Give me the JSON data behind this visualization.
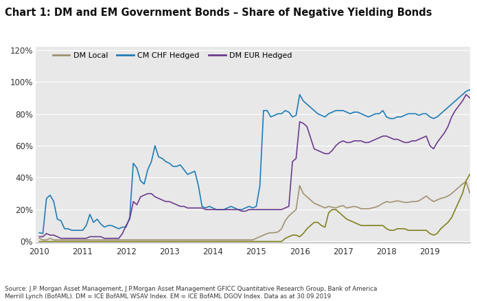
{
  "title": "Chart 1: DM and EM Government Bonds – Share of Negative Yielding Bonds",
  "source_text": "Source: J.P. Morgan Asset Management, J.P.Morgan Asset Management GFICC Quantitative Research Group, Bank of America\nMerrill Lynch (BofAML). DM = ICE BofAML WSAV Index. EM = ICE BofAML DGOV Index. Data as at 30.09.2019",
  "fig_background": "#ffffff",
  "axes_background": "#e8e8e8",
  "legend": [
    "DM Local",
    "CM CHF Hedged",
    "DM EUR Hedged"
  ],
  "legend_colors": [
    "#a09070",
    "#1e7bb5",
    "#6b3a8c"
  ],
  "em_color": "#808020",
  "ylim": [
    -0.005,
    1.22
  ],
  "yticks": [
    0.0,
    0.2,
    0.4,
    0.6,
    0.8,
    1.0,
    1.2
  ],
  "xticks": [
    2010,
    2011,
    2012,
    2013,
    2014,
    2015,
    2016,
    2017,
    2018,
    2019
  ],
  "dm_local": [
    0.02,
    0.01,
    0.01,
    0.02,
    0.01,
    0.01,
    0.01,
    0.01,
    0.01,
    0.01,
    0.01,
    0.01,
    0.01,
    0.01,
    0.01,
    0.01,
    0.01,
    0.01,
    0.01,
    0.01,
    0.01,
    0.01,
    0.01,
    0.01,
    0.01,
    0.01,
    0.01,
    0.01,
    0.01,
    0.01,
    0.01,
    0.01,
    0.01,
    0.01,
    0.01,
    0.01,
    0.01,
    0.01,
    0.01,
    0.01,
    0.01,
    0.01,
    0.01,
    0.01,
    0.01,
    0.01,
    0.01,
    0.01,
    0.01,
    0.01,
    0.01,
    0.01,
    0.01,
    0.01,
    0.01,
    0.01,
    0.01,
    0.01,
    0.01,
    0.01,
    0.02,
    0.03,
    0.04,
    0.05,
    0.055,
    0.055,
    0.06,
    0.08,
    0.13,
    0.16,
    0.18,
    0.2,
    0.35,
    0.3,
    0.28,
    0.26,
    0.24,
    0.23,
    0.22,
    0.21,
    0.22,
    0.215,
    0.21,
    0.22,
    0.225,
    0.21,
    0.215,
    0.22,
    0.215,
    0.205,
    0.205,
    0.205,
    0.21,
    0.215,
    0.225,
    0.24,
    0.25,
    0.245,
    0.25,
    0.255,
    0.25,
    0.245,
    0.245,
    0.25,
    0.25,
    0.255,
    0.27,
    0.285,
    0.265,
    0.25,
    0.26,
    0.27,
    0.275,
    0.285,
    0.3,
    0.32,
    0.34,
    0.36,
    0.375,
    0.305
  ],
  "cm_chf": [
    0.055,
    0.05,
    0.27,
    0.29,
    0.25,
    0.14,
    0.13,
    0.08,
    0.08,
    0.07,
    0.07,
    0.07,
    0.07,
    0.1,
    0.17,
    0.12,
    0.14,
    0.11,
    0.09,
    0.1,
    0.1,
    0.09,
    0.08,
    0.09,
    0.09,
    0.15,
    0.49,
    0.46,
    0.38,
    0.36,
    0.45,
    0.5,
    0.6,
    0.53,
    0.52,
    0.5,
    0.49,
    0.47,
    0.47,
    0.48,
    0.45,
    0.42,
    0.43,
    0.44,
    0.35,
    0.22,
    0.21,
    0.22,
    0.21,
    0.2,
    0.2,
    0.2,
    0.21,
    0.22,
    0.21,
    0.2,
    0.2,
    0.21,
    0.22,
    0.21,
    0.22,
    0.35,
    0.82,
    0.82,
    0.78,
    0.79,
    0.8,
    0.8,
    0.82,
    0.81,
    0.78,
    0.79,
    0.92,
    0.88,
    0.86,
    0.84,
    0.82,
    0.8,
    0.79,
    0.78,
    0.8,
    0.81,
    0.82,
    0.82,
    0.82,
    0.81,
    0.8,
    0.81,
    0.81,
    0.8,
    0.79,
    0.78,
    0.79,
    0.8,
    0.8,
    0.82,
    0.78,
    0.77,
    0.77,
    0.78,
    0.78,
    0.79,
    0.8,
    0.8,
    0.8,
    0.79,
    0.8,
    0.8,
    0.78,
    0.77,
    0.78,
    0.8,
    0.82,
    0.84,
    0.86,
    0.88,
    0.9,
    0.92,
    0.94,
    0.95
  ],
  "dm_eur": [
    0.03,
    0.03,
    0.05,
    0.04,
    0.04,
    0.03,
    0.02,
    0.02,
    0.02,
    0.02,
    0.02,
    0.02,
    0.02,
    0.02,
    0.03,
    0.03,
    0.03,
    0.03,
    0.02,
    0.02,
    0.02,
    0.02,
    0.02,
    0.05,
    0.1,
    0.14,
    0.25,
    0.23,
    0.28,
    0.29,
    0.3,
    0.3,
    0.28,
    0.27,
    0.26,
    0.25,
    0.25,
    0.24,
    0.23,
    0.22,
    0.22,
    0.21,
    0.21,
    0.21,
    0.21,
    0.21,
    0.2,
    0.2,
    0.2,
    0.2,
    0.2,
    0.2,
    0.2,
    0.2,
    0.2,
    0.2,
    0.19,
    0.19,
    0.2,
    0.2,
    0.2,
    0.2,
    0.2,
    0.2,
    0.2,
    0.2,
    0.2,
    0.2,
    0.21,
    0.22,
    0.5,
    0.52,
    0.75,
    0.74,
    0.72,
    0.65,
    0.58,
    0.57,
    0.56,
    0.55,
    0.55,
    0.57,
    0.6,
    0.62,
    0.63,
    0.62,
    0.62,
    0.63,
    0.63,
    0.63,
    0.62,
    0.62,
    0.63,
    0.64,
    0.65,
    0.66,
    0.66,
    0.65,
    0.64,
    0.64,
    0.63,
    0.62,
    0.62,
    0.63,
    0.63,
    0.64,
    0.65,
    0.66,
    0.6,
    0.58,
    0.62,
    0.65,
    0.68,
    0.72,
    0.78,
    0.82,
    0.85,
    0.88,
    0.92,
    0.9
  ],
  "em_local": [
    0.0,
    0.0,
    0.0,
    0.0,
    0.0,
    0.0,
    0.0,
    0.0,
    0.0,
    0.0,
    0.0,
    0.0,
    0.0,
    0.0,
    0.0,
    0.0,
    0.0,
    0.0,
    0.0,
    0.0,
    0.0,
    0.0,
    0.0,
    0.0,
    0.0,
    0.0,
    0.0,
    0.0,
    0.0,
    0.0,
    0.0,
    0.0,
    0.0,
    0.0,
    0.0,
    0.0,
    0.0,
    0.0,
    0.0,
    0.0,
    0.0,
    0.0,
    0.0,
    0.0,
    0.0,
    0.0,
    0.0,
    0.0,
    0.0,
    0.0,
    0.0,
    0.0,
    0.0,
    0.0,
    0.0,
    0.0,
    0.0,
    0.0,
    0.0,
    0.0,
    0.0,
    0.0,
    0.0,
    0.0,
    0.0,
    0.0,
    0.0,
    0.0,
    0.02,
    0.03,
    0.04,
    0.04,
    0.03,
    0.05,
    0.08,
    0.1,
    0.12,
    0.12,
    0.1,
    0.09,
    0.18,
    0.2,
    0.2,
    0.18,
    0.16,
    0.14,
    0.13,
    0.12,
    0.11,
    0.1,
    0.1,
    0.1,
    0.1,
    0.1,
    0.1,
    0.1,
    0.08,
    0.07,
    0.07,
    0.08,
    0.08,
    0.08,
    0.07,
    0.07,
    0.07,
    0.07,
    0.07,
    0.07,
    0.05,
    0.04,
    0.05,
    0.08,
    0.1,
    0.12,
    0.15,
    0.2,
    0.25,
    0.3,
    0.38,
    0.42
  ]
}
